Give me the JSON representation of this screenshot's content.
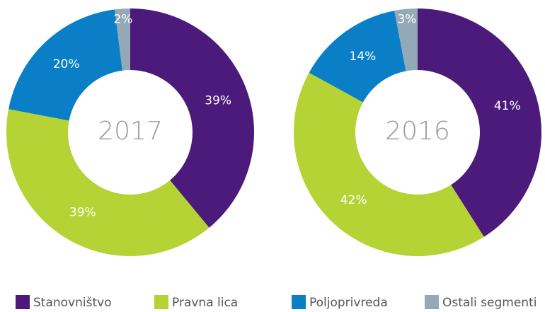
{
  "legend": {
    "categories": [
      "Stanovništvo",
      "Pravna lica",
      "Poljoprivreda",
      "Ostali segmenti"
    ],
    "colors": [
      "#4b1a7b",
      "#b5d334",
      "#0a7fc7",
      "#94a9b8"
    ]
  },
  "chart_data": [
    {
      "type": "pie",
      "title": "2017",
      "values": [
        39,
        39,
        20,
        2
      ],
      "value_labels": [
        "39%",
        "39%",
        "20%",
        "2%"
      ]
    },
    {
      "type": "pie",
      "title": "2016",
      "values": [
        41,
        42,
        14,
        3
      ],
      "value_labels": [
        "41%",
        "42%",
        "14%",
        "3%"
      ]
    }
  ]
}
